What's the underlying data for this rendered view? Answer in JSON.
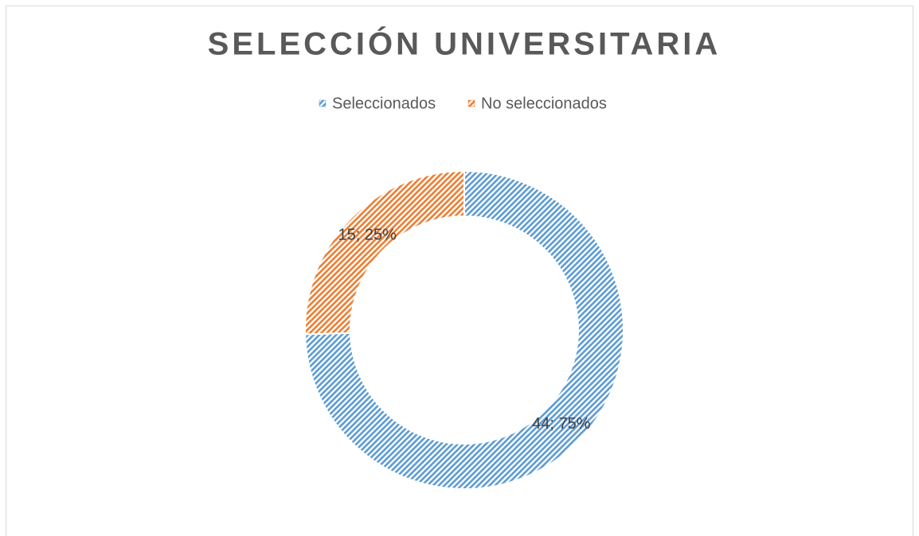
{
  "chart_data": {
    "type": "donut",
    "title": "SELECCIÓN UNIVERSITARIA",
    "categories": [
      "Seleccionados",
      "No seleccionados"
    ],
    "values": [
      44,
      15
    ],
    "value_labels": [
      "44; 75%",
      "15; 25%"
    ],
    "colors": [
      "#5b9bd5",
      "#ed7d31"
    ],
    "legend": "top"
  }
}
